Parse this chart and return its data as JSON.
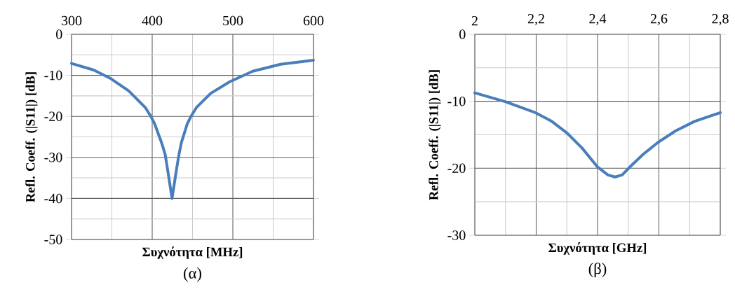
{
  "chart_data": [
    {
      "type": "line",
      "xlabel": "Συχνότητα [MHz]",
      "ylabel": "Refl. Coeff. (|S11|) [dB]",
      "annotations": [
        "(α)"
      ],
      "xlim": [
        300,
        600
      ],
      "ylim": [
        -50,
        0
      ],
      "grid": true,
      "line_style": "solid",
      "xticks": [
        300,
        {
          "value": 350,
          "label": null
        },
        400,
        {
          "value": 450,
          "label": null
        },
        500,
        {
          "value": 550,
          "label": null
        },
        600
      ],
      "yticks": [
        -50,
        {
          "value": -45,
          "label": null
        },
        -40,
        {
          "value": -35,
          "label": null
        },
        -30,
        {
          "value": -25,
          "label": null
        },
        -20,
        {
          "value": -15,
          "label": null
        },
        -10,
        {
          "value": -5,
          "label": null
        },
        0
      ],
      "series": [
        {
          "color": "#4a7ebb",
          "x": [
            300,
            327.5,
            347.8,
            371,
            391.3,
            398.6,
            403,
            411.6,
            416,
            418.8,
            424.6,
            430.4,
            433.3,
            436.2,
            443.5,
            447.8,
            455,
            472.5,
            495.7,
            524.6,
            559.4,
            600
          ],
          "values": [
            -7.1,
            -8.7,
            -10.7,
            -13.8,
            -17.8,
            -20.1,
            -21.8,
            -26.4,
            -29.2,
            -32.6,
            -40,
            -32.6,
            -29.2,
            -26.4,
            -21.8,
            -20.1,
            -17.8,
            -14.4,
            -11.6,
            -9,
            -7.3,
            -6.3
          ]
        }
      ]
    },
    {
      "type": "line",
      "xlabel": "Συχνότητα [GHz]",
      "ylabel": "Refl. Coeff. (|S11|) [dB]",
      "annotations": [
        "(β)"
      ],
      "xlim": [
        2,
        2.8
      ],
      "ylim": [
        -30,
        0
      ],
      "grid": true,
      "line_style": "solid",
      "xticks": [
        2,
        {
          "value": 2.1,
          "label": null
        },
        {
          "value": 2.2,
          "label": "2,2"
        },
        {
          "value": 2.3,
          "label": null
        },
        {
          "value": 2.4,
          "label": "2,4"
        },
        {
          "value": 2.5,
          "label": null
        },
        {
          "value": 2.6,
          "label": "2,6"
        },
        {
          "value": 2.7,
          "label": null
        },
        {
          "value": 2.8,
          "label": "2,8"
        }
      ],
      "yticks": [
        -30,
        {
          "value": -25,
          "label": null
        },
        -20,
        {
          "value": -15,
          "label": null
        },
        -10,
        {
          "value": -5,
          "label": null
        },
        0
      ],
      "series": [
        {
          "color": "#4a7ebb",
          "x": [
            2.0,
            2.099,
            2.198,
            2.251,
            2.301,
            2.35,
            2.4,
            2.434,
            2.457,
            2.48,
            2.51,
            2.549,
            2.598,
            2.655,
            2.716,
            2.8
          ],
          "values": [
            -8.75,
            -10.05,
            -11.7,
            -13.0,
            -14.75,
            -17.0,
            -19.8,
            -21.0,
            -21.3,
            -21.0,
            -19.6,
            -17.9,
            -16.1,
            -14.4,
            -13.0,
            -11.7
          ]
        }
      ]
    }
  ]
}
